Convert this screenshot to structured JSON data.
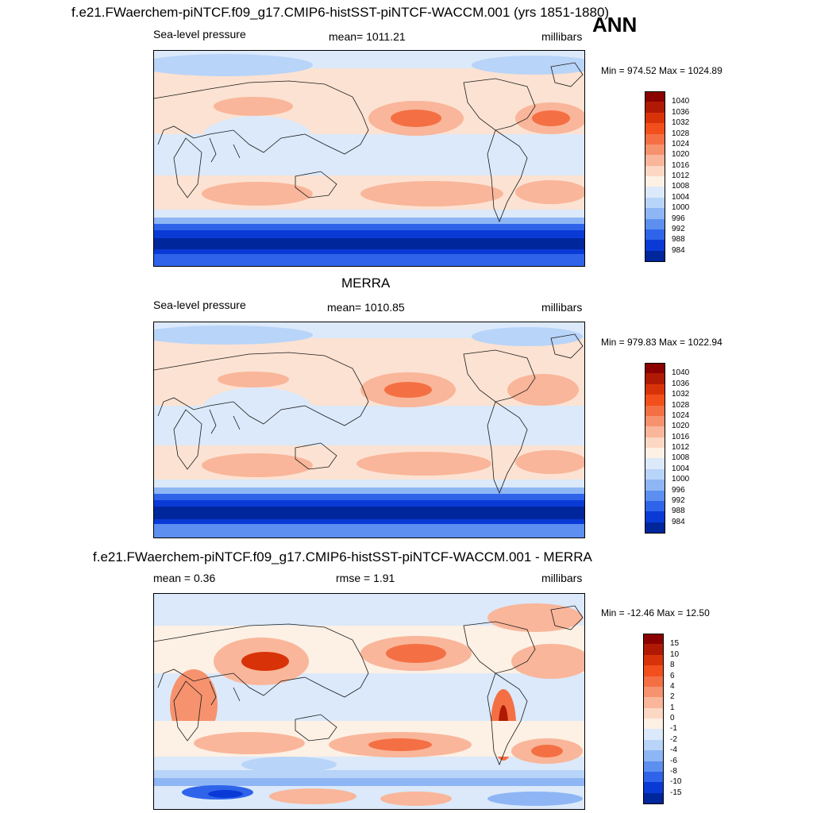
{
  "header": {
    "main_title": "f.e21.FWaerchem-piNTCF.f09_g17.CMIP6-histSST-piNTCF-WACCM.001 (yrs 1851-1880)",
    "season": "ANN"
  },
  "panels": [
    {
      "id": "model",
      "title": "",
      "left_label": "Sea-level pressure",
      "center_label": "mean= 1011.21",
      "right_label": "millibars",
      "minmax": "Min = 974.52 Max = 1024.89",
      "levels": [
        "1040",
        "1036",
        "1032",
        "1028",
        "1024",
        "1020",
        "1016",
        "1012",
        "1008",
        "1004",
        "1000",
        "996",
        "992",
        "988",
        "984"
      ],
      "colors": [
        "#8b0000",
        "#b01a04",
        "#d83308",
        "#f24f1c",
        "#f47044",
        "#f7926e",
        "#f9b69a",
        "#fcd8c4",
        "#fdf0e4",
        "#dbe9fa",
        "#b8d4f8",
        "#8eb6f5",
        "#5c8ff0",
        "#2f64ea",
        "#0a3ad6",
        "#00269c"
      ]
    },
    {
      "id": "obs",
      "title": "MERRA",
      "left_label": "Sea-level pressure",
      "center_label": "mean= 1010.85",
      "right_label": "millibars",
      "minmax": "Min = 979.83 Max = 1022.94",
      "levels": [
        "1040",
        "1036",
        "1032",
        "1028",
        "1024",
        "1020",
        "1016",
        "1012",
        "1008",
        "1004",
        "1000",
        "996",
        "992",
        "988",
        "984"
      ],
      "colors": [
        "#8b0000",
        "#b01a04",
        "#d83308",
        "#f24f1c",
        "#f47044",
        "#f7926e",
        "#f9b69a",
        "#fcd8c4",
        "#fdf0e4",
        "#dbe9fa",
        "#b8d4f8",
        "#8eb6f5",
        "#5c8ff0",
        "#2f64ea",
        "#0a3ad6",
        "#00269c"
      ]
    },
    {
      "id": "diff",
      "title": "f.e21.FWaerchem-piNTCF.f09_g17.CMIP6-histSST-piNTCF-WACCM.001 - MERRA",
      "left_label": "mean =   0.36",
      "center_label": "rmse =   1.91",
      "right_label": "millibars",
      "minmax": "Min = -12.46 Max =  12.50",
      "levels": [
        "15",
        "10",
        "8",
        "6",
        "4",
        "2",
        "1",
        "0",
        "-1",
        "-2",
        "-4",
        "-6",
        "-8",
        "-10",
        "-15"
      ],
      "colors": [
        "#8b0000",
        "#b01a04",
        "#d83308",
        "#f24f1c",
        "#f47044",
        "#f7926e",
        "#f9b69a",
        "#fcd8c4",
        "#fdf0e4",
        "#dbe9fa",
        "#b8d4f8",
        "#8eb6f5",
        "#5c8ff0",
        "#2f64ea",
        "#0a3ad6",
        "#00269c"
      ]
    }
  ]
}
